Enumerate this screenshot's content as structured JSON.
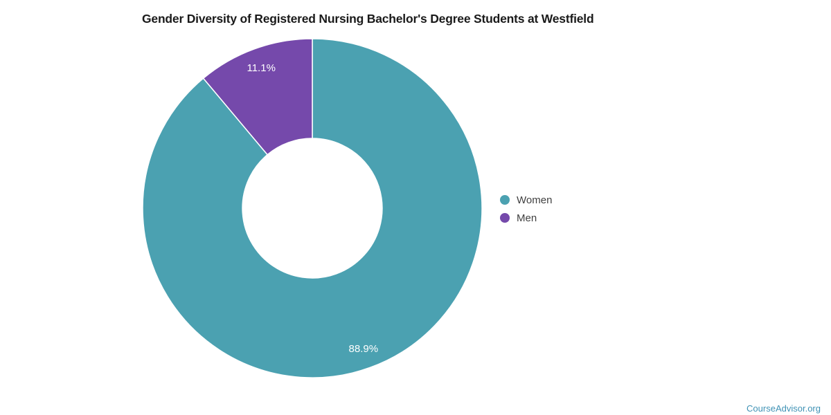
{
  "header": {
    "title": "Gender Diversity of Registered Nursing Bachelor's Degree Students at Westfield"
  },
  "legend": {
    "items": [
      {
        "label": "Women",
        "color": "#4BA1B1"
      },
      {
        "label": "Men",
        "color": "#7549AB"
      }
    ]
  },
  "footer": {
    "source_label": "CourseAdvisor.org",
    "color": "#3F92B5"
  },
  "chart_data": {
    "type": "pie",
    "subtype": "donut",
    "title": "Gender Diversity of Registered Nursing Bachelor's Degree Students at Westfield",
    "categories": [
      "Women",
      "Men"
    ],
    "values": [
      88.9,
      11.1
    ],
    "value_labels": [
      "88.9%",
      "11.1%"
    ],
    "colors": [
      "#4BA1B1",
      "#7549AB"
    ],
    "slice_label_color": "#ffffff",
    "slice_separator_color": "#ffffff",
    "start_angle_deg": 0,
    "direction": "clockwise",
    "legend_position": "right",
    "inner_radius_ratio": 0.412,
    "label_radius_ratio": 0.882
  }
}
